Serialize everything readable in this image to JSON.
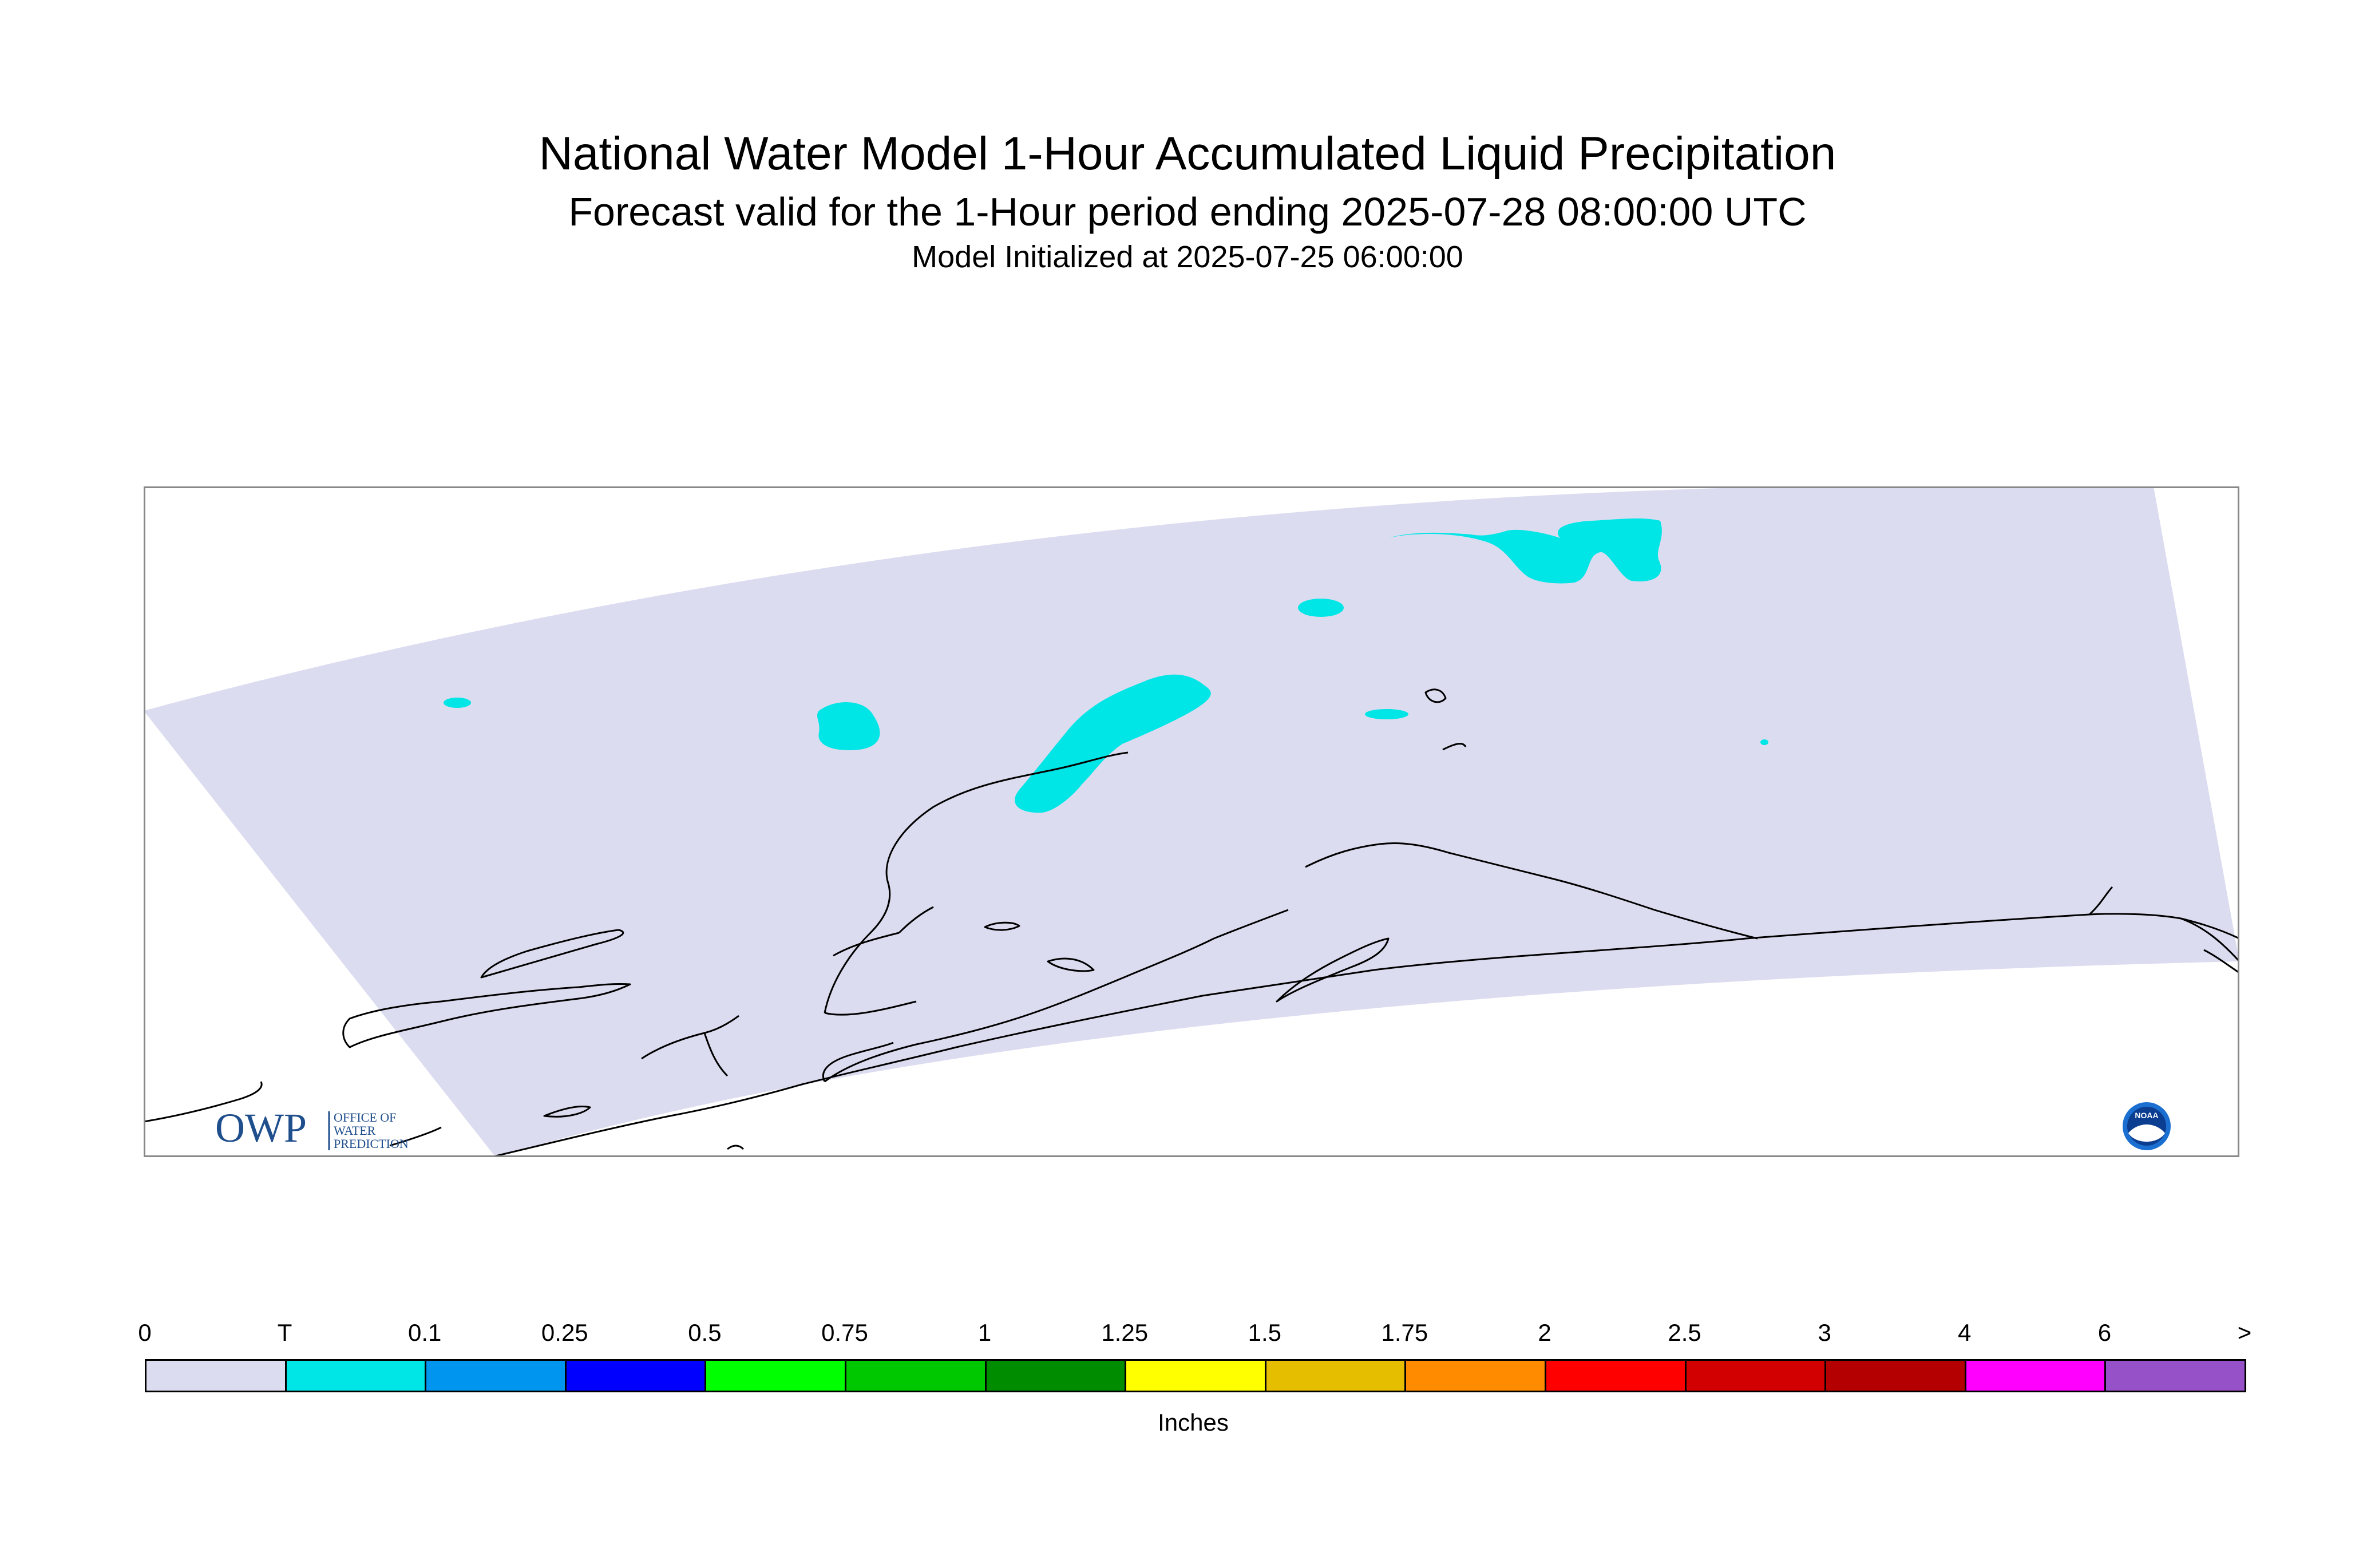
{
  "header": {
    "title": "National Water Model 1-Hour Accumulated Liquid Precipitation",
    "subtitle": "Forecast valid for the 1-Hour period ending 2025-07-28 08:00:00 UTC",
    "init": "Model Initialized at 2025-07-25 06:00:00"
  },
  "map": {
    "domain_fill": "#dcdcf0",
    "precip_fill": "#00e5e5",
    "precip_category": "T",
    "coastline_color": "#000000",
    "logos": {
      "owp": {
        "initials": "OWP",
        "line1": "OFFICE OF",
        "line2": "WATER",
        "line3": "PREDICTION",
        "color": "#1f4e8c"
      },
      "noaa": {
        "label": "NOAA",
        "icon": "noaa-logo-icon"
      }
    }
  },
  "legend": {
    "units": "Inches",
    "ticks": [
      "0",
      "T",
      "0.1",
      "0.25",
      "0.5",
      "0.75",
      "1",
      "1.25",
      "1.5",
      "1.75",
      "2",
      "2.5",
      "3",
      "4",
      "6",
      ">"
    ],
    "colors": [
      "#dcdcf0",
      "#00e5e5",
      "#0096f0",
      "#0000ff",
      "#00ff00",
      "#00c800",
      "#008c00",
      "#ffff00",
      "#e6be00",
      "#ff8c00",
      "#ff0000",
      "#d20000",
      "#b40000",
      "#ff00ff",
      "#9650c8"
    ]
  }
}
